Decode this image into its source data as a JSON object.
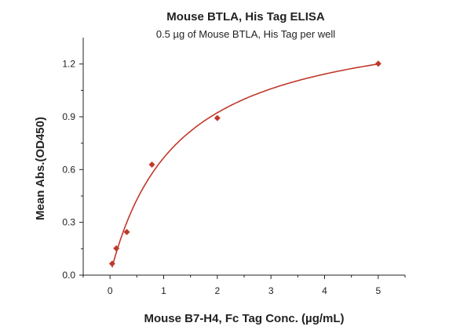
{
  "chart_data": {
    "type": "scatter",
    "title": "Mouse BTLA, His Tag ELISA",
    "subtitle": "0.5 µg of Mouse BTLA, His Tag per well",
    "xlabel": "Mouse B7-H4, Fc Tag Conc. (µg/mL)",
    "ylabel": "Mean Abs.(OD450)",
    "xlim": [
      -0.5,
      5.5
    ],
    "ylim": [
      0,
      1.35
    ],
    "xticks": [
      0,
      1,
      2,
      3,
      4,
      5
    ],
    "yticks": [
      0.0,
      0.3,
      0.6,
      0.9,
      1.2
    ],
    "xtick_labels": [
      "0",
      "1",
      "2",
      "3",
      "4",
      "5"
    ],
    "ytick_labels": [
      "0.0",
      "0.3",
      "0.6",
      "0.9",
      "1.2"
    ],
    "series": [
      {
        "x": [
          0.039,
          0.117,
          0.313,
          0.781,
          2.0,
          5.0
        ],
        "y": [
          0.065,
          0.152,
          0.245,
          0.628,
          0.893,
          1.202
        ],
        "marker": "diamond",
        "color": "#c0392b",
        "fit": "four-parameter logistic curve"
      }
    ],
    "grid": false
  }
}
